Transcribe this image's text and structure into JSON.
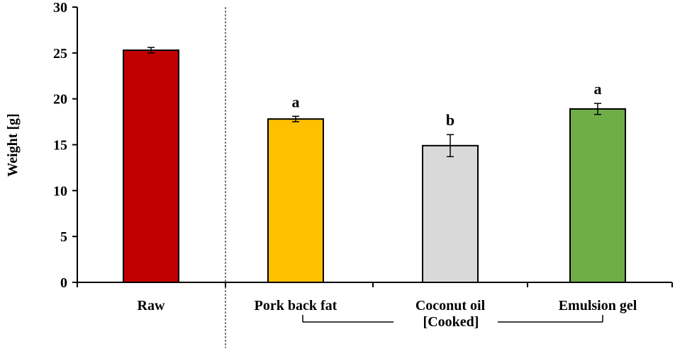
{
  "chart_data": {
    "type": "bar",
    "title": "",
    "xlabel": "",
    "ylabel": "Weight [g]",
    "ylim": [
      0,
      30
    ],
    "yticks": [
      0,
      5,
      10,
      15,
      20,
      25,
      30
    ],
    "grid": false,
    "categories": [
      "Raw",
      "Pork back fat",
      "Coconut oil",
      "Emulsion gel"
    ],
    "values": [
      25.3,
      17.8,
      14.9,
      18.9
    ],
    "errors": [
      0.3,
      0.3,
      1.2,
      0.6
    ],
    "significance": [
      "",
      "a",
      "b",
      "a"
    ],
    "colors": [
      "#c00000",
      "#ffc000",
      "#d9d9d9",
      "#70ad47"
    ],
    "group_label": "[Cooked]",
    "group_members": [
      "Pork back fat",
      "Coconut oil",
      "Emulsion gel"
    ]
  }
}
